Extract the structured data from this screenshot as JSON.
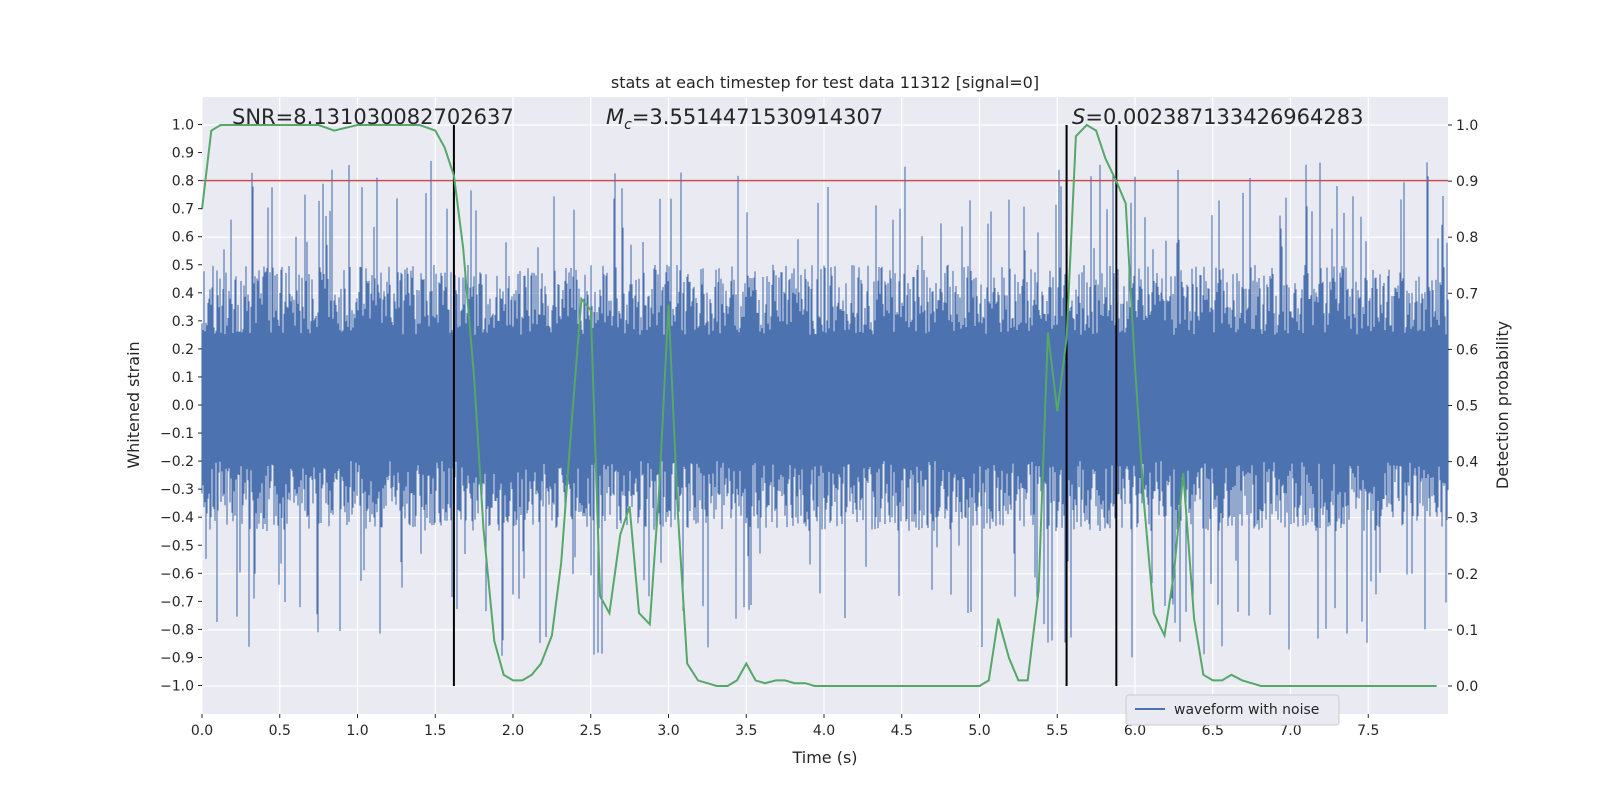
{
  "chart_data": {
    "type": "line",
    "title": "stats at each timestep for test data 11312 [signal=0]",
    "xlabel": "Time (s)",
    "ylabel": "Whitened strain",
    "y2label": "Detection probability",
    "xlim": [
      0.0,
      8.0
    ],
    "ylim": [
      -1.1,
      1.1
    ],
    "y2lim": [
      -0.05,
      1.05
    ],
    "x_ticks": [
      "0.0",
      "0.5",
      "1.0",
      "1.5",
      "2.0",
      "2.5",
      "3.0",
      "3.5",
      "4.0",
      "4.5",
      "5.0",
      "5.5",
      "6.0",
      "6.5",
      "7.0",
      "7.5"
    ],
    "y_ticks": [
      "1.0",
      "0.9",
      "0.8",
      "0.7",
      "0.6",
      "0.5",
      "0.4",
      "0.3",
      "0.2",
      "0.1",
      "0.0",
      "−0.1",
      "−0.2",
      "−0.3",
      "−0.4",
      "−0.5",
      "−0.6",
      "−0.7",
      "−0.8",
      "−0.9",
      "−1.0"
    ],
    "y2_ticks": [
      "1.0",
      "0.9",
      "0.8",
      "0.7",
      "0.6",
      "0.5",
      "0.4",
      "0.3",
      "0.2",
      "0.1",
      "0.0"
    ],
    "grid": true,
    "legend": {
      "placement": "lower-right",
      "entries": [
        "waveform with noise"
      ]
    },
    "colors": {
      "waveform": "#4c72b0",
      "probability": "#55a868",
      "threshold": "#c44e52",
      "markers": "#000000",
      "plot_bg": "#eaeaf2",
      "grid": "#ffffff"
    },
    "annotations": {
      "snr": "SNR=8.131030082702637",
      "mc_symbol": "M",
      "mc_sub": "c",
      "mc_value": "=3.5514471530914307",
      "s_symbol": "S",
      "s_value": "=0.002387133426964283"
    },
    "threshold_strain": 0.8,
    "vertical_lines_x": [
      1.62,
      5.56,
      5.88
    ],
    "series": [
      {
        "name": "waveform with noise",
        "axis": "left",
        "description_values": {
          "typical_envelope": [
            -0.45,
            0.5
          ],
          "extreme_min": -1.0,
          "extreme_max": 0.89
        }
      },
      {
        "axis": "right",
        "x": [
          0.0,
          0.06,
          0.12,
          0.25,
          0.5,
          0.75,
          0.85,
          1.0,
          1.25,
          1.4,
          1.5,
          1.56,
          1.62,
          1.68,
          1.75,
          1.81,
          1.88,
          1.94,
          2.0,
          2.06,
          2.12,
          2.18,
          2.25,
          2.31,
          2.38,
          2.44,
          2.5,
          2.56,
          2.62,
          2.69,
          2.75,
          2.81,
          2.88,
          2.94,
          3.0,
          3.06,
          3.12,
          3.19,
          3.25,
          3.31,
          3.38,
          3.44,
          3.5,
          3.56,
          3.62,
          3.69,
          3.75,
          3.81,
          3.88,
          3.94,
          4.0,
          4.06,
          4.12,
          4.25,
          4.5,
          4.75,
          5.0,
          5.06,
          5.12,
          5.19,
          5.25,
          5.31,
          5.38,
          5.44,
          5.5,
          5.56,
          5.62,
          5.69,
          5.75,
          5.81,
          5.88,
          5.94,
          6.0,
          6.06,
          6.12,
          6.19,
          6.25,
          6.31,
          6.38,
          6.44,
          6.5,
          6.56,
          6.62,
          6.69,
          6.75,
          6.81,
          6.88,
          7.0,
          7.25,
          7.5,
          7.75,
          7.94
        ],
        "y": [
          0.85,
          0.99,
          1.0,
          1.0,
          1.0,
          1.0,
          0.99,
          1.0,
          1.0,
          1.0,
          0.99,
          0.96,
          0.91,
          0.78,
          0.55,
          0.28,
          0.08,
          0.02,
          0.01,
          0.01,
          0.02,
          0.04,
          0.09,
          0.22,
          0.48,
          0.69,
          0.67,
          0.16,
          0.13,
          0.27,
          0.32,
          0.13,
          0.11,
          0.35,
          0.68,
          0.31,
          0.04,
          0.01,
          0.005,
          0.0,
          0.0,
          0.01,
          0.04,
          0.01,
          0.005,
          0.01,
          0.01,
          0.005,
          0.005,
          0.0,
          0.0,
          0.0,
          0.0,
          0.0,
          0.0,
          0.0,
          0.0,
          0.01,
          0.12,
          0.05,
          0.01,
          0.01,
          0.17,
          0.63,
          0.49,
          0.62,
          0.98,
          1.0,
          0.99,
          0.94,
          0.9,
          0.86,
          0.57,
          0.32,
          0.13,
          0.09,
          0.2,
          0.38,
          0.12,
          0.02,
          0.01,
          0.01,
          0.02,
          0.01,
          0.005,
          0.0,
          0.0,
          0.0,
          0.0,
          0.0,
          0.0,
          0.0
        ]
      }
    ]
  }
}
